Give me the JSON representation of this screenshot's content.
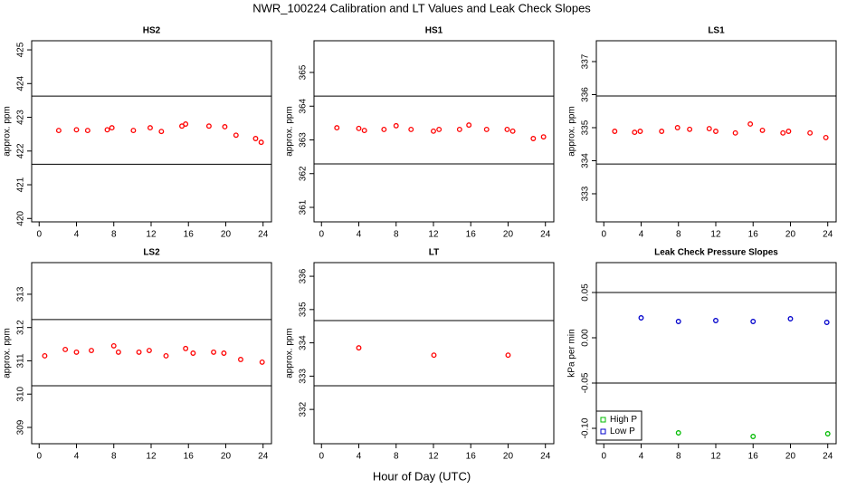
{
  "title": "NWR_100224  Calibration and LT Values and Leak Check Slopes",
  "xlabel": "Hour of Day (UTC)",
  "chart_data": [
    {
      "type": "scatter",
      "title": "HS2",
      "ylabel": "approx. ppm",
      "color": "#ff0000",
      "x": [
        2.1,
        4.0,
        5.2,
        7.3,
        7.8,
        10.1,
        11.9,
        13.1,
        15.3,
        15.7,
        18.2,
        19.9,
        21.1,
        23.2,
        23.8
      ],
      "values": [
        422.61,
        422.63,
        422.61,
        422.63,
        422.69,
        422.61,
        422.69,
        422.58,
        422.74,
        422.8,
        422.74,
        422.72,
        422.47,
        422.37,
        422.26
      ],
      "hlines": [
        423.63,
        421.61
      ],
      "xlim": [
        -0.8,
        24.9
      ],
      "xticks": [
        0,
        4,
        8,
        12,
        16,
        20,
        24
      ],
      "ylim": [
        419.9,
        425.27
      ],
      "yticks": [
        420,
        421,
        422,
        423,
        424,
        425
      ]
    },
    {
      "type": "scatter",
      "title": "HS1",
      "ylabel": "approx. ppm",
      "color": "#ff0000",
      "x": [
        1.65,
        4.0,
        4.6,
        6.7,
        8.0,
        9.6,
        12.0,
        12.6,
        14.8,
        15.8,
        17.7,
        19.9,
        20.5,
        22.7,
        23.8
      ],
      "values": [
        363.36,
        363.34,
        363.28,
        363.31,
        363.42,
        363.31,
        363.26,
        363.31,
        363.31,
        363.44,
        363.31,
        363.31,
        363.26,
        363.04,
        363.09
      ],
      "hlines": [
        364.3,
        362.29
      ],
      "xlim": [
        -0.8,
        24.9
      ],
      "xticks": [
        0,
        4,
        8,
        12,
        16,
        20,
        24
      ],
      "ylim": [
        360.57,
        365.94
      ],
      "yticks": [
        361,
        362,
        363,
        364,
        365
      ]
    },
    {
      "type": "scatter",
      "title": "LS1",
      "ylabel": "approx. ppm",
      "color": "#ff0000",
      "x": [
        1.17,
        3.3,
        3.9,
        6.2,
        7.9,
        9.2,
        11.3,
        12.0,
        14.1,
        15.7,
        17.0,
        19.2,
        19.8,
        22.1,
        23.8
      ],
      "values": [
        334.89,
        334.86,
        334.89,
        334.89,
        335.0,
        334.95,
        334.97,
        334.89,
        334.84,
        335.11,
        334.92,
        334.84,
        334.89,
        334.84,
        334.7
      ],
      "hlines": [
        335.96,
        333.9
      ],
      "xlim": [
        -0.8,
        24.9
      ],
      "xticks": [
        0,
        4,
        8,
        12,
        16,
        20,
        24
      ],
      "ylim": [
        332.15,
        337.63
      ],
      "yticks": [
        333,
        334,
        335,
        336,
        337
      ]
    },
    {
      "type": "scatter",
      "title": "LS2",
      "ylabel": "approx. ppm",
      "color": "#ff0000",
      "x": [
        0.6,
        2.8,
        4.0,
        5.6,
        8.0,
        8.5,
        10.7,
        11.8,
        13.6,
        15.7,
        16.5,
        18.7,
        19.8,
        21.6,
        23.9
      ],
      "values": [
        311.15,
        311.34,
        311.26,
        311.31,
        311.45,
        311.26,
        311.26,
        311.31,
        311.15,
        311.37,
        311.23,
        311.26,
        311.23,
        311.04,
        310.96
      ],
      "hlines": [
        312.24,
        310.25
      ],
      "xlim": [
        -0.8,
        24.9
      ],
      "xticks": [
        0,
        4,
        8,
        12,
        16,
        20,
        24
      ],
      "ylim": [
        308.51,
        313.95
      ],
      "yticks": [
        309,
        310,
        311,
        312,
        313
      ]
    },
    {
      "type": "scatter",
      "title": "LT",
      "ylabel": "approx. ppm",
      "color": "#ff0000",
      "x": [
        4.0,
        12.05,
        20.0
      ],
      "values": [
        333.85,
        333.63,
        333.63
      ],
      "hlines": [
        334.67,
        332.71
      ],
      "xlim": [
        -0.8,
        24.9
      ],
      "xticks": [
        0,
        4,
        8,
        12,
        16,
        20,
        24
      ],
      "ylim": [
        330.97,
        336.41
      ],
      "yticks": [
        332,
        333,
        334,
        335,
        336
      ]
    },
    {
      "type": "scatter",
      "title": "Leak Check Pressure Slopes",
      "ylabel": "kPa per min",
      "series": [
        {
          "name": "High P",
          "color": "#00bb00",
          "x": [
            8.0,
            16.0,
            24.0
          ],
          "values": [
            -0.105,
            -0.109,
            -0.106
          ]
        },
        {
          "name": "Low P",
          "color": "#0000cc",
          "x": [
            4.0,
            8.0,
            12.0,
            16.0,
            20.0,
            23.9
          ],
          "values": [
            0.022,
            0.018,
            0.019,
            0.018,
            0.021,
            0.017
          ]
        }
      ],
      "hlines": [
        0.05,
        -0.05
      ],
      "legend": "bottom-left",
      "xlim": [
        -0.8,
        24.9
      ],
      "xticks": [
        0,
        4,
        8,
        12,
        16,
        20,
        24
      ],
      "ylim": [
        -0.117,
        0.083
      ],
      "yticks": [
        0.05,
        {
          "value": 0,
          "label": "0.00"
        },
        -0.05,
        {
          "value": -0.1,
          "label": "-0.10"
        }
      ]
    }
  ]
}
